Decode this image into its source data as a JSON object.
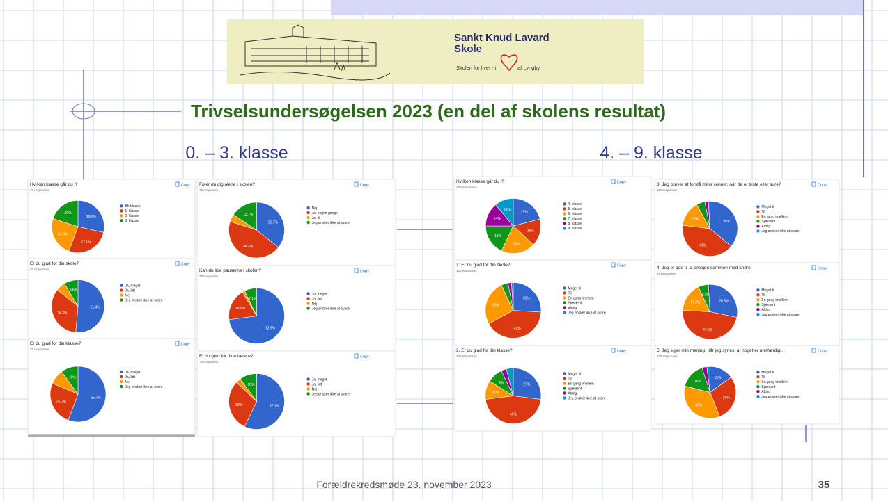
{
  "logo": {
    "line1": "Sankt Knud Lavard",
    "line2": "Skole",
    "tagline": "Skolen for livet - i",
    "tagline2": "af Lyngby"
  },
  "title": "Trivselsundersøgelsen 2023 (en del af skolens resultat)",
  "subtitles": [
    "0. – 3. klasse",
    "4. – 9. klasse"
  ],
  "footer": "Forældrekredsmøde 23. november 2023",
  "page_number": "35",
  "chart_data": [
    {
      "type": "pie",
      "title": "Hvilken klasse går du i?",
      "subtitle": "70 responses",
      "copy": "Copy",
      "categories": [
        "Bh-klasse",
        "1. klasse",
        "2. klasse",
        "3. klasse"
      ],
      "colors": [
        "#3366cc",
        "#dc3912",
        "#ff9900",
        "#109618"
      ],
      "values": [
        28.6,
        27.1,
        24.3,
        20
      ],
      "value_labels": [
        "28.6%",
        "27.1%",
        "24.3%",
        "20%"
      ]
    },
    {
      "type": "pie",
      "title": "Er du glad for din skole?",
      "subtitle": "70 responses",
      "copy": "Copy",
      "categories": [
        "Ja, meget",
        "Ja, lidt",
        "Nej",
        "Jeg ønsker ikke at svare"
      ],
      "colors": [
        "#3366cc",
        "#dc3912",
        "#ff9900",
        "#109618"
      ],
      "values": [
        51.4,
        34.3,
        5.7,
        8.6
      ],
      "value_labels": [
        "51.4%",
        "34.3%",
        null,
        "8.6%"
      ]
    },
    {
      "type": "pie",
      "title": "Er du glad for din klasse?",
      "subtitle": "70 responses",
      "copy": "Copy",
      "categories": [
        "Ja, meget",
        "Ja, lidt",
        "Nej",
        "Jeg ønsker ikke at svare"
      ],
      "colors": [
        "#3366cc",
        "#dc3912",
        "#ff9900",
        "#109618"
      ],
      "values": [
        55.7,
        25.7,
        8.6,
        10
      ],
      "value_labels": [
        "55.7%",
        "25.7%",
        null,
        "10%"
      ]
    },
    {
      "type": "pie",
      "title": "Føler du dig alene i skolen?",
      "subtitle": "70 responses",
      "copy": "Copy",
      "categories": [
        "Nej",
        "Ja, nogen gange",
        "Ja, tit",
        "Jeg ønsker ikke at svare"
      ],
      "colors": [
        "#3366cc",
        "#dc3912",
        "#ff9900",
        "#109618"
      ],
      "values": [
        35.7,
        44.3,
        4.3,
        15.7
      ],
      "value_labels": [
        "35.7%",
        "44.3%",
        null,
        "15.7%"
      ]
    },
    {
      "type": "pie",
      "title": "Kan du lide pauserne i skolen?",
      "subtitle": "70 responses",
      "copy": "Copy",
      "categories": [
        "Ja, meget",
        "Ja, lidt",
        "Nej",
        "Jeg ønsker ikke at svare"
      ],
      "colors": [
        "#3366cc",
        "#dc3912",
        "#ff9900",
        "#109618"
      ],
      "values": [
        72.9,
        18.6,
        1.4,
        7.1
      ],
      "value_labels": [
        "72.9%",
        "18.6%",
        null,
        "7.1%"
      ]
    },
    {
      "type": "pie",
      "title": "Er du glad for dine lærere?",
      "subtitle": "70 responses",
      "copy": "Copy",
      "categories": [
        "Ja, meget",
        "Ja, lidt",
        "Nej",
        "Jeg ønsker ikke at svare"
      ],
      "colors": [
        "#3366cc",
        "#dc3912",
        "#ff9900",
        "#109618"
      ],
      "values": [
        57.1,
        30,
        2.9,
        10
      ],
      "value_labels": [
        "57.1%",
        "30%",
        null,
        "10%"
      ]
    },
    {
      "type": "pie",
      "title": "Hvilken klasse går du i?",
      "subtitle": "100 responses",
      "copy": "Copy",
      "categories": [
        "4. klasse",
        "5. klasse",
        "6. klasse",
        "7. klasse",
        "8. klasse",
        "9. klasse"
      ],
      "colors": [
        "#3366cc",
        "#dc3912",
        "#ff9900",
        "#109618",
        "#990099",
        "#0099c6"
      ],
      "values": [
        21,
        16,
        20,
        18,
        14,
        11
      ],
      "value_labels": [
        "21%",
        "16%",
        "20%",
        "18%",
        "14%",
        "11%"
      ]
    },
    {
      "type": "pie",
      "title": "1. Er du glad for din skole?",
      "subtitle": "100 responses",
      "copy": "Copy",
      "categories": [
        "Meget til",
        "Til",
        "En gang imellem",
        "Sjældent",
        "Aldrig",
        "Jeg ønsker ikke at svare"
      ],
      "colors": [
        "#3366cc",
        "#dc3912",
        "#ff9900",
        "#109618",
        "#990099",
        "#0099c6"
      ],
      "values": [
        26,
        41,
        26,
        4,
        2,
        1
      ],
      "value_labels": [
        "26%",
        "41%",
        "26%",
        null,
        null,
        null
      ]
    },
    {
      "type": "pie",
      "title": "2. Er du glad for din klasse?",
      "subtitle": "100 responses",
      "copy": "Copy",
      "categories": [
        "Meget til",
        "Til",
        "En gang imellem",
        "Sjældent",
        "Aldrig",
        "Jeg ønsker ikke at svare"
      ],
      "colors": [
        "#3366cc",
        "#dc3912",
        "#ff9900",
        "#109618",
        "#990099",
        "#0099c6"
      ],
      "values": [
        27,
        46,
        11,
        9,
        3,
        4
      ],
      "value_labels": [
        "27%",
        "46%",
        "11%",
        "9%",
        null,
        null
      ]
    },
    {
      "type": "pie",
      "title": "3. Jeg prøver at forstå mine venner, når de er triste eller sure?",
      "subtitle": "100 responses",
      "copy": "Copy",
      "categories": [
        "Meget til",
        "Til",
        "En gang imellem",
        "Sjældent",
        "Aldrig",
        "Jeg ønsker ikke at svare"
      ],
      "colors": [
        "#3366cc",
        "#dc3912",
        "#ff9900",
        "#109618",
        "#990099",
        "#0099c6"
      ],
      "values": [
        36,
        41,
        15,
        5,
        2,
        1
      ],
      "value_labels": [
        "36%",
        "41%",
        "15%",
        null,
        null,
        null
      ]
    },
    {
      "type": "pie",
      "title": "4. Jeg er god til at arbejde sammen med andre.",
      "subtitle": "99 responses",
      "copy": "Copy",
      "categories": [
        "Meget til",
        "Til",
        "En gang imellem",
        "Sjældent",
        "Aldrig",
        "Jeg ønsker ikke at svare"
      ],
      "colors": [
        "#3366cc",
        "#dc3912",
        "#ff9900",
        "#109618",
        "#990099",
        "#0099c6"
      ],
      "values": [
        28.3,
        47.5,
        17.2,
        6.1,
        0.9,
        0
      ],
      "value_labels": [
        "28.3%",
        "47.5%",
        "17.2%",
        "6.1%",
        null,
        null
      ]
    },
    {
      "type": "pie",
      "title": "5. Jeg siger min mening, når jeg synes, at noget er uretfærdigt.",
      "subtitle": "100 responses",
      "copy": "Copy",
      "categories": [
        "Meget til",
        "Til",
        "En gang imellem",
        "Sjældent",
        "Aldrig",
        "Jeg ønsker ikke at svare"
      ],
      "colors": [
        "#3366cc",
        "#dc3912",
        "#ff9900",
        "#109618",
        "#990099",
        "#0099c6"
      ],
      "values": [
        15,
        29,
        35,
        16,
        3,
        2
      ],
      "value_labels": [
        "15%",
        "29%",
        "35%",
        "16%",
        null,
        null
      ]
    }
  ]
}
